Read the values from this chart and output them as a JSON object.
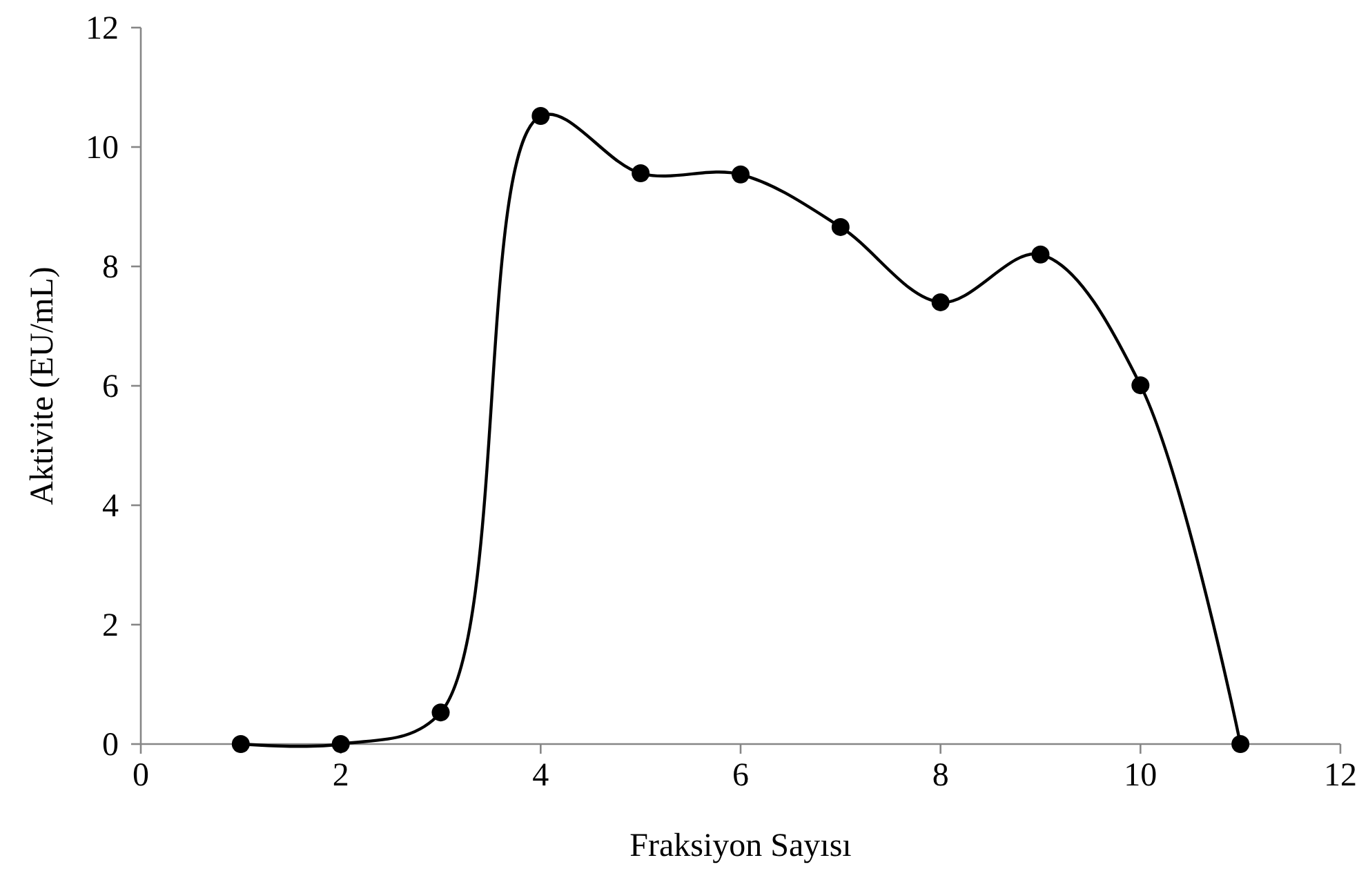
{
  "chart_data": {
    "type": "line",
    "xlabel": "Fraksiyon Sayısı",
    "ylabel": "Aktivite (EU/mL)",
    "x": [
      1,
      2,
      3,
      4,
      5,
      6,
      7,
      8,
      9,
      10,
      11
    ],
    "series": [
      {
        "color": "#000000",
        "values": [
          0,
          0,
          0.53,
          10.52,
          9.56,
          9.54,
          8.66,
          7.4,
          8.2,
          6.01,
          0
        ]
      }
    ],
    "xlim": [
      0,
      12
    ],
    "xticks": [
      0,
      2,
      4,
      6,
      8,
      10,
      12
    ],
    "ylim": [
      0,
      12
    ],
    "yticks": [
      0,
      2,
      4,
      6,
      8,
      10,
      12
    ],
    "grid": false,
    "marker": "circle",
    "line_style": "solid"
  }
}
